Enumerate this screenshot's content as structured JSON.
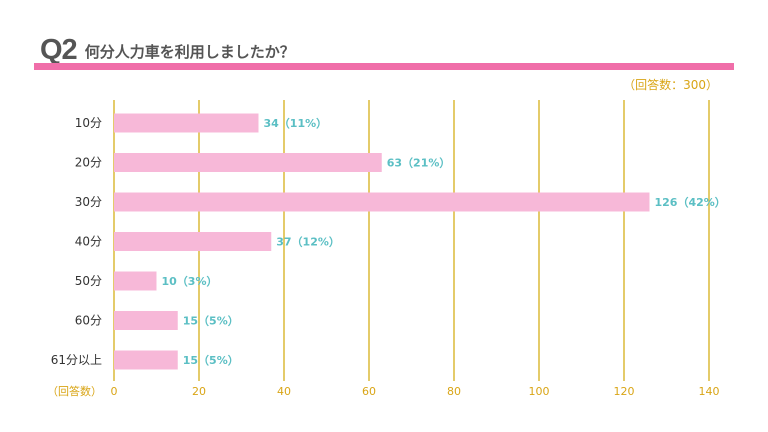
{
  "header": {
    "number": "Q2",
    "question": "何分人力車を利用しましたか？",
    "respondents": "（回答数：300）"
  },
  "colors": {
    "accent": "#f06ea9",
    "bar": "#f7b8d8",
    "grid": "#d9b52a",
    "value_label": "#5bbfc4",
    "text": "#555555"
  },
  "chart_data": {
    "type": "bar",
    "orientation": "horizontal",
    "categories": [
      "10分",
      "20分",
      "30分",
      "40分",
      "50分",
      "60分",
      "61分以上"
    ],
    "values": [
      34,
      63,
      126,
      37,
      10,
      15,
      15
    ],
    "value_labels": [
      "34（11%）",
      "63（21%）",
      "126（42%）",
      "37（12%）",
      "10（3%）",
      "15（5%）",
      "15（5%）"
    ],
    "xlim": [
      0,
      140
    ],
    "xticks": [
      0,
      20,
      40,
      60,
      80,
      100,
      120,
      140
    ],
    "xlabel": "（回答数）",
    "grid": true
  }
}
